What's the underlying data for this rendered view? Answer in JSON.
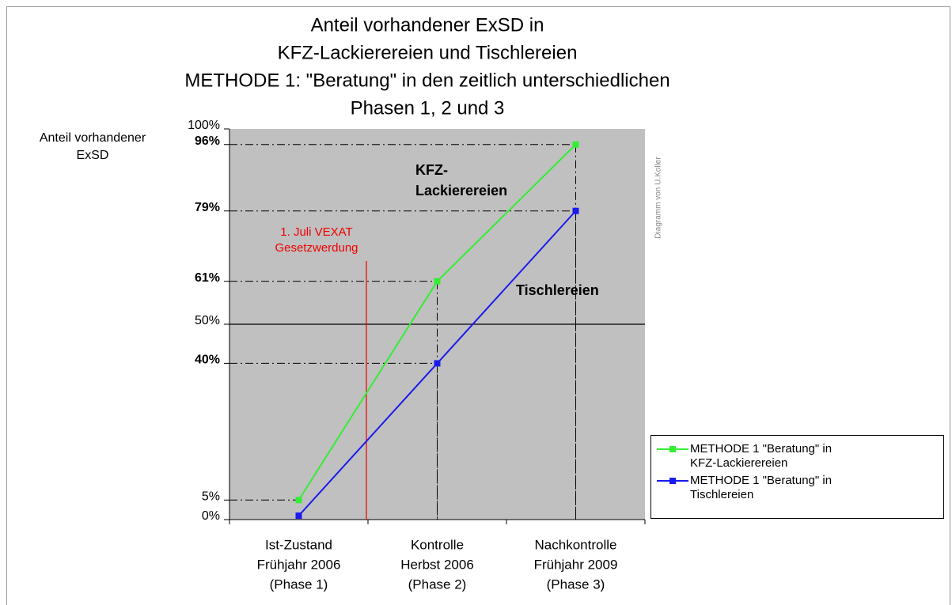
{
  "chart_data": {
    "type": "line",
    "title": [
      "Anteil vorhandener ExSD in",
      "KFZ-Lackierereien und Tischlereien",
      "METHODE 1: \"Beratung\" in den zeitlich unterschiedlichen",
      "Phasen 1, 2 und 3"
    ],
    "y_label": [
      "Anteil vorhandener",
      "ExSD"
    ],
    "categories": [
      [
        "Ist-Zustand",
        "Frühjahr 2006",
        "(Phase 1)"
      ],
      [
        "Kontrolle",
        "Herbst  2006",
        "(Phase 2)"
      ],
      [
        "Nachkontrolle",
        "Frühjahr 2009",
        "(Phase 3)"
      ]
    ],
    "series": [
      {
        "name": [
          "METHODE 1 \"Beratung\" in",
          "KFZ-Lackierereien"
        ],
        "color": "#33ee33",
        "values": [
          5,
          61,
          96
        ]
      },
      {
        "name": [
          "METHODE 1 \"Beratung\" in",
          "Tischlereien"
        ],
        "color": "#1a1aee",
        "values": [
          1,
          40,
          79
        ]
      }
    ],
    "ylim": [
      0,
      100
    ],
    "yticks": [
      {
        "value": 0,
        "label": "0%"
      },
      {
        "value": 5,
        "label": "5%"
      },
      {
        "value": 40,
        "label": "40%"
      },
      {
        "value": 50,
        "label": "50%"
      },
      {
        "value": 61,
        "label": "61%"
      },
      {
        "value": 79,
        "label": "79%"
      },
      {
        "value": 96,
        "label": "96%"
      },
      {
        "value": 100,
        "label": "100%"
      }
    ],
    "bold_yticks": [
      false,
      false,
      true,
      false,
      true,
      true,
      true,
      false
    ],
    "reference_line": 50,
    "annotations": {
      "event": [
        "1. Juli VEXAT",
        "Gesetzwerdung"
      ],
      "series_0": [
        "KFZ-",
        "Lackierereien"
      ],
      "series_1": [
        "Tischlereien"
      ],
      "credit": "Diagramm von U.Koller"
    },
    "legend": "right"
  }
}
